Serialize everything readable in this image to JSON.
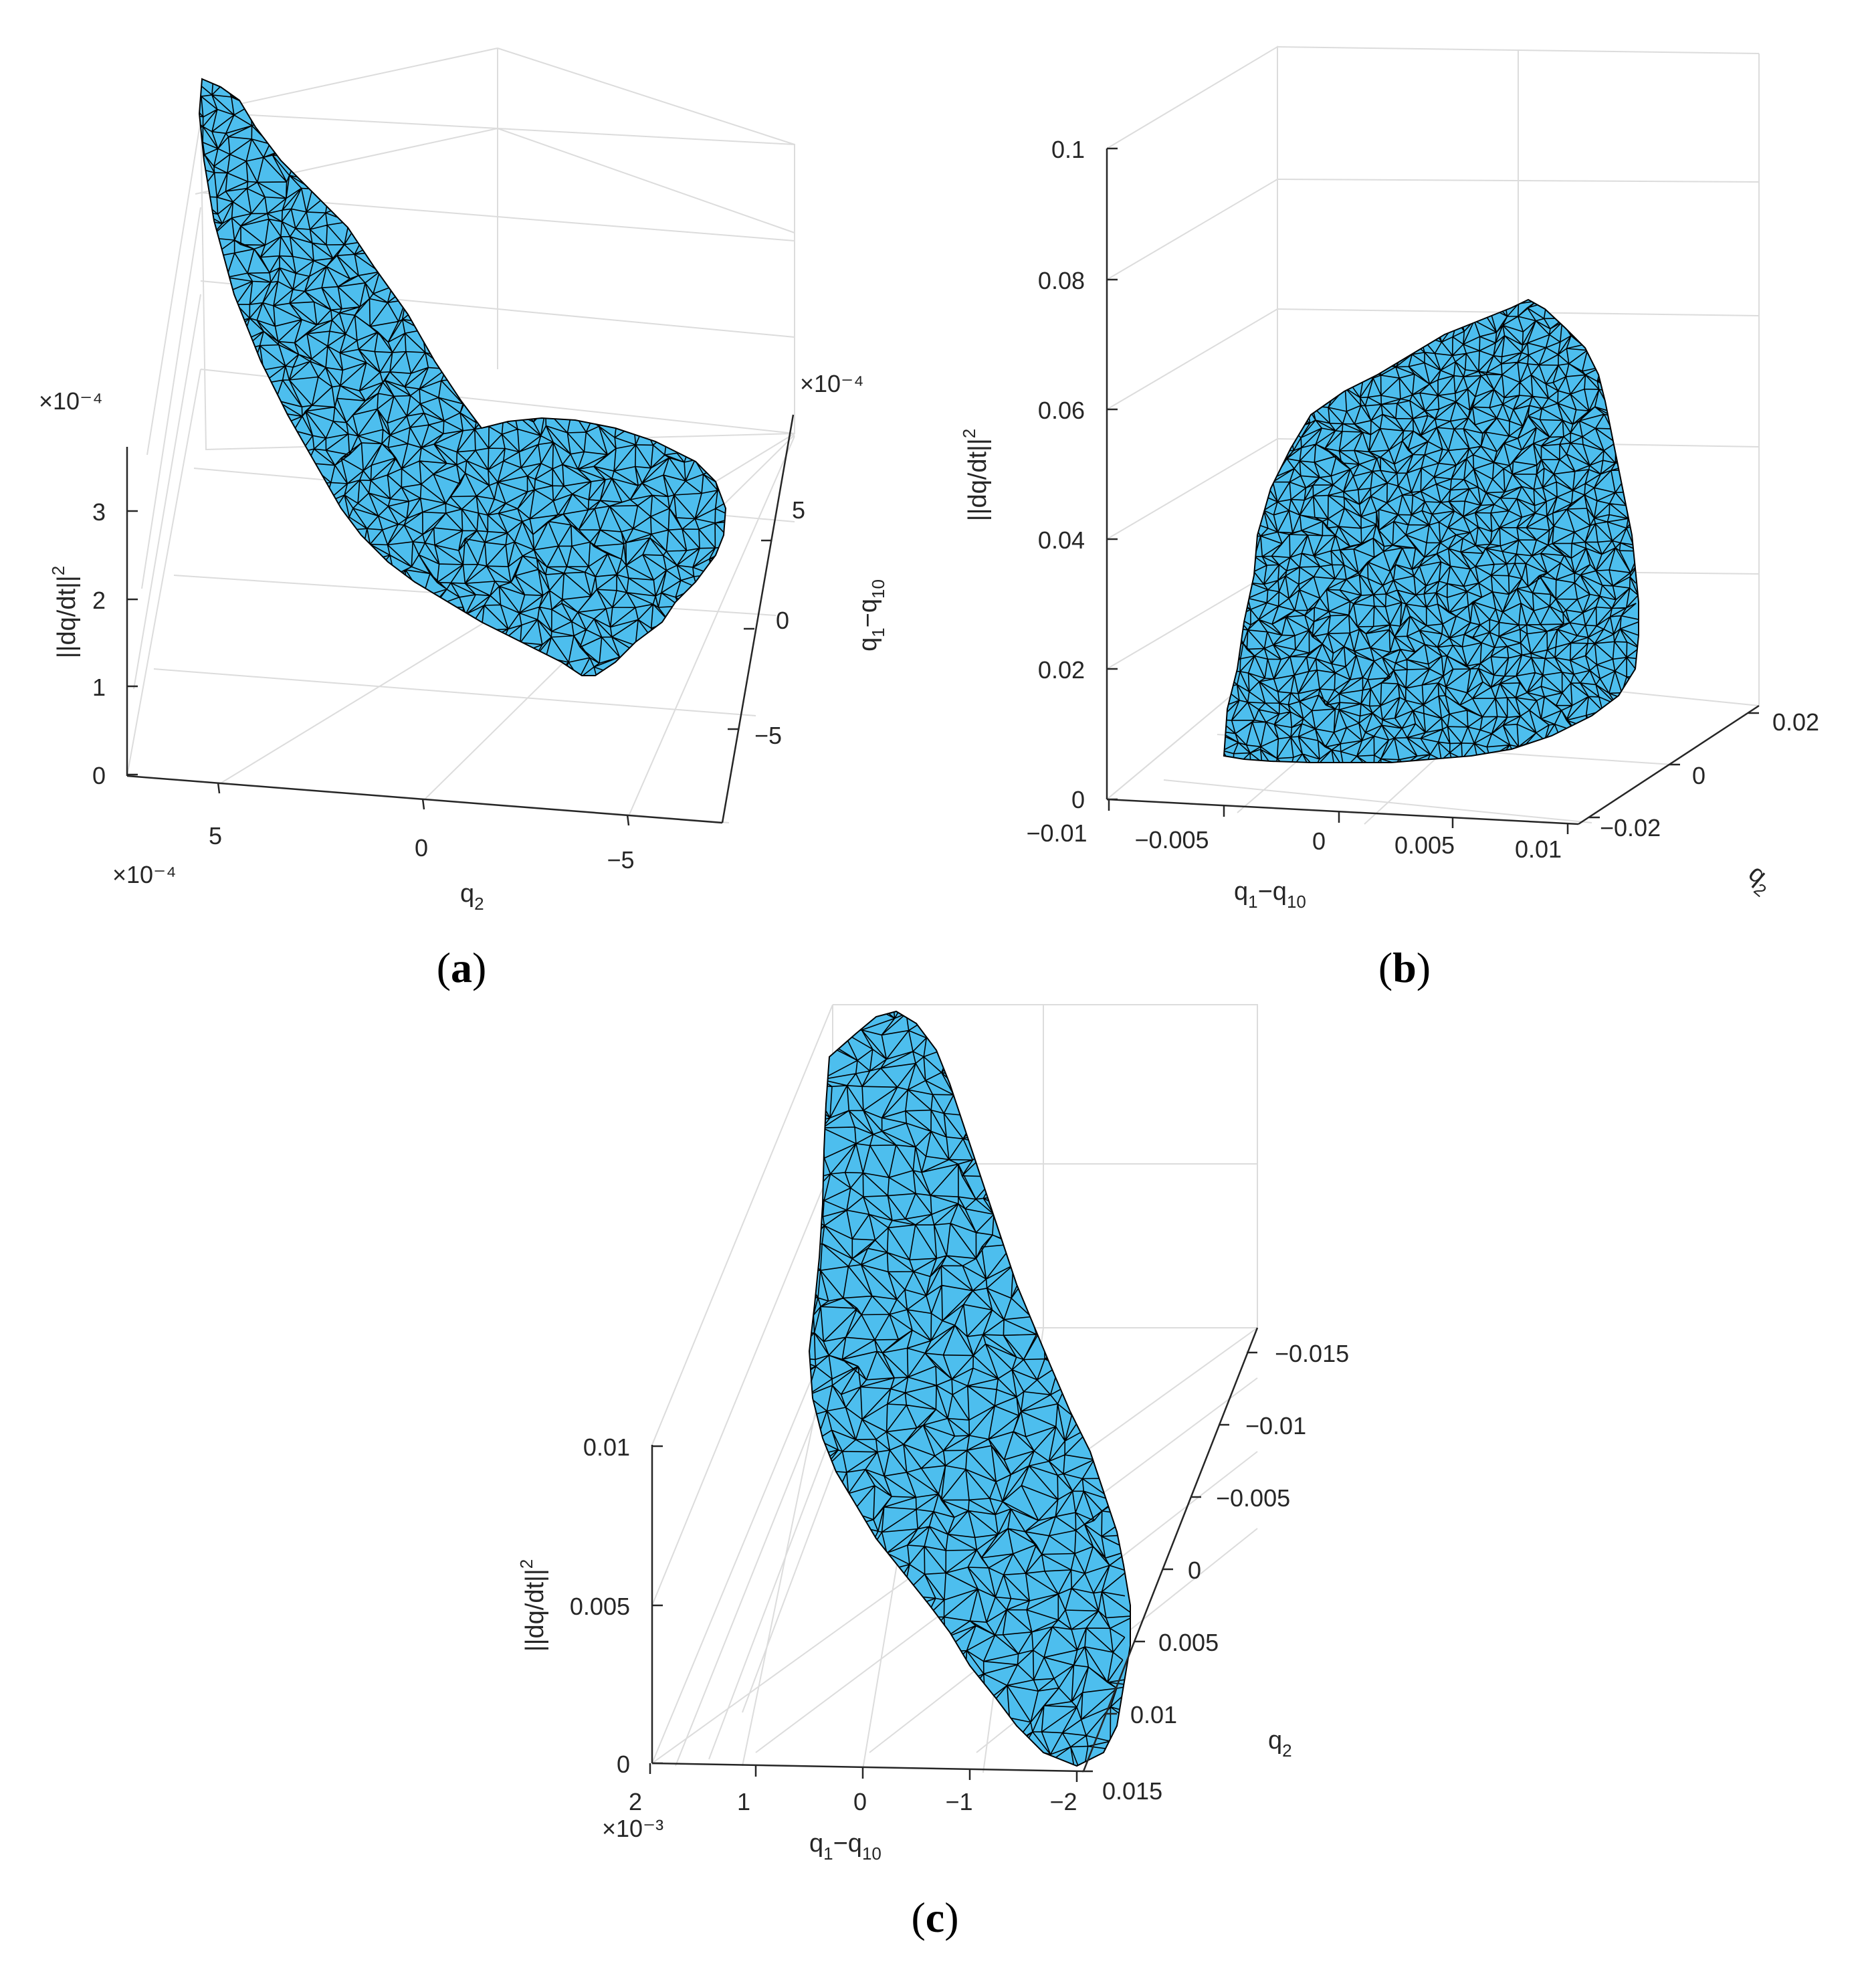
{
  "colors": {
    "surface": "#4DBEEE",
    "mesh": "#000000",
    "grid": "#dcdcdc",
    "axis": "#262626"
  },
  "chart_data": [
    {
      "panel": "a",
      "caption": "a",
      "type": "surface3d",
      "xlabel": "q",
      "xlabel_sub": "2",
      "ylabel": "q",
      "ylabel_sub": "1",
      "ylabel_mid": "−q",
      "ylabel_sub2": "10",
      "zlabel": "||dq/dt||",
      "zlabel_sup": "2",
      "x_ticks": [
        "5",
        "0",
        "−5"
      ],
      "x_exponent": "×10⁻⁴",
      "y_ticks": [
        "5",
        "0",
        "−5"
      ],
      "y_exponent": "×10⁻⁴",
      "z_ticks": [
        "0",
        "1",
        "2",
        "3"
      ],
      "z_exponent": "×10⁻⁴",
      "xlim": [
        -0.0007,
        0.0007
      ],
      "ylim": [
        -0.0007,
        0.0007
      ],
      "zlim": [
        0,
        0.00035
      ],
      "grid": true,
      "outline": [
        [
          0.0007,
          0.0001,
          0.00035
        ],
        [
          0.0002,
          -0.0001,
          0.00015
        ],
        [
          5e-05,
          -0.0002,
          5e-05
        ],
        [
          -0.0003,
          -0.0003,
          1e-05
        ],
        [
          -0.0004,
          -0.0001,
          2e-05
        ],
        [
          -0.0006,
          0.0004,
          0.0001
        ],
        [
          -0.0003,
          0.0006,
          8e-05
        ],
        [
          0.0,
          0.00055,
          6e-05
        ],
        [
          0.0004,
          0.0003,
          0.0002
        ]
      ]
    },
    {
      "panel": "b",
      "caption": "b",
      "type": "surface3d",
      "xlabel": "q",
      "xlabel_sub": "1",
      "xlabel_mid": "−q",
      "xlabel_sub2": "10",
      "ylabel": "q",
      "ylabel_sub": "2",
      "zlabel": "||dq/dt||",
      "zlabel_sup": "2",
      "x_ticks": [
        "−0.01",
        "−0.005",
        "0",
        "0.005",
        "0.01"
      ],
      "y_ticks": [
        "−0.02",
        "0",
        "0.02"
      ],
      "z_ticks": [
        "0",
        "0.02",
        "0.04",
        "0.06",
        "0.08",
        "0.1"
      ],
      "xlim": [
        -0.01,
        0.01
      ],
      "ylim": [
        -0.02,
        0.02
      ],
      "zlim": [
        0,
        0.1
      ],
      "grid": true,
      "outline": [
        [
          -0.008,
          -0.01,
          0.0
        ],
        [
          -0.008,
          -0.015,
          0.055
        ],
        [
          -0.002,
          0.0,
          0.075
        ],
        [
          0.006,
          0.01,
          0.075
        ],
        [
          0.01,
          0.015,
          0.06
        ],
        [
          0.01,
          0.02,
          0.02
        ],
        [
          0.004,
          0.015,
          0.0
        ],
        [
          -0.004,
          -0.005,
          0.0
        ]
      ]
    },
    {
      "panel": "c",
      "caption": "c",
      "type": "surface3d",
      "xlabel": "q",
      "xlabel_sub": "1",
      "xlabel_mid": "−q",
      "xlabel_sub2": "10",
      "ylabel": "q",
      "ylabel_sub": "2",
      "zlabel": "||dq/dt||",
      "zlabel_sup": "2",
      "x_ticks": [
        "2",
        "1",
        "0",
        "−1",
        "−2"
      ],
      "x_exponent": "×10⁻³",
      "y_ticks": [
        "−0.015",
        "−0.01",
        "−0.005",
        "0",
        "0.005",
        "0.01",
        "0.015"
      ],
      "z_ticks": [
        "0",
        "0.005",
        "0.01"
      ],
      "xlim": [
        -0.002,
        0.002
      ],
      "ylim": [
        -0.015,
        0.015
      ],
      "zlim": [
        0,
        0.012
      ],
      "grid": true,
      "outline": [
        [
          -0.001,
          0.014,
          0.0
        ],
        [
          0.0005,
          0.0,
          0.008
        ],
        [
          0.001,
          -0.01,
          0.012
        ],
        [
          0.0015,
          -0.012,
          0.011
        ],
        [
          0.0,
          0.0,
          0.004
        ],
        [
          -0.0018,
          0.012,
          0.0005
        ]
      ]
    }
  ]
}
